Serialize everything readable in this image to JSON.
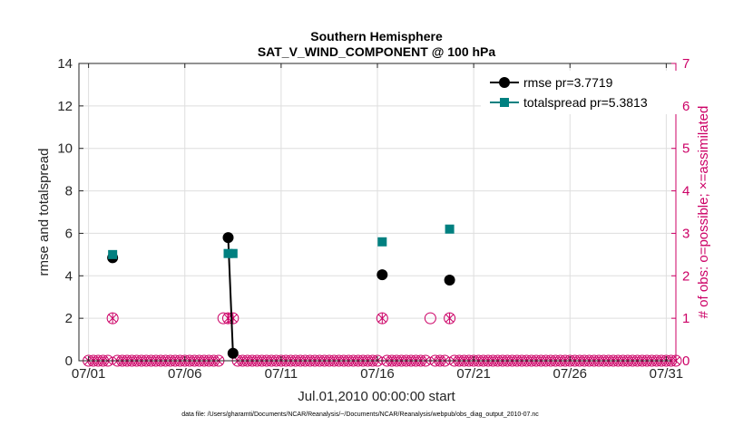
{
  "chart_data": {
    "type": "scatter",
    "title_lines": [
      "Southern Hemisphere",
      "SAT_V_WIND_COMPONENT @ 100 hPa"
    ],
    "xlabel": "Jul.01,2010 00:00:00 start",
    "ylabel_left": "rmse and totalspread",
    "ylabel_right": "# of obs: o=possible; ×=assimilated",
    "footnote": "data file: /Users/gharamti/Documents/NCAR/Reanalysis/~/Documents/NCAR/Reanalysis/webpub/obs_diag_output_2010-07.nc",
    "xlim": [
      0.5,
      31.5
    ],
    "ylim_left": [
      0,
      14
    ],
    "ylim_right": [
      0,
      7
    ],
    "x_ticks": [
      1,
      6,
      11,
      16,
      21,
      26,
      31
    ],
    "x_tick_labels": [
      "07/01",
      "07/06",
      "07/11",
      "07/16",
      "07/21",
      "07/26",
      "07/31"
    ],
    "y_ticks_left": [
      "0",
      "2",
      "4",
      "6",
      "8",
      "10",
      "12",
      "14"
    ],
    "y_ticks_right": [
      "0",
      "1",
      "2",
      "3",
      "4",
      "5",
      "6",
      "7"
    ],
    "grid": true,
    "legend_position": "top-right",
    "series": [
      {
        "name": "rmse pr=3.7719",
        "color": "#000000",
        "marker": "circle",
        "line_segments": [
          [
            [
              8.25,
              5.8
            ],
            [
              8.5,
              0.35
            ]
          ]
        ],
        "points": [
          [
            2.25,
            4.85
          ],
          [
            8.25,
            5.8
          ],
          [
            8.5,
            0.35
          ],
          [
            16.25,
            4.05
          ],
          [
            19.75,
            3.8
          ]
        ]
      },
      {
        "name": "totalspread pr=5.3813",
        "color": "#008080",
        "marker": "square",
        "line_segments": [
          [
            [
              8.25,
              5.05
            ],
            [
              8.5,
              5.05
            ]
          ]
        ],
        "points": [
          [
            2.25,
            5.0
          ],
          [
            8.25,
            5.05
          ],
          [
            8.5,
            5.05
          ],
          [
            16.25,
            5.6
          ],
          [
            19.75,
            6.2
          ]
        ]
      }
    ],
    "obs_count": {
      "color": "#cc0066",
      "possible": [
        [
          2.25,
          1
        ],
        [
          8.0,
          1
        ],
        [
          8.25,
          1
        ],
        [
          8.5,
          1
        ],
        [
          16.25,
          1
        ],
        [
          18.75,
          1
        ],
        [
          19.75,
          1
        ]
      ],
      "assimilated": [
        [
          2.25,
          1
        ],
        [
          8.25,
          1
        ],
        [
          8.5,
          1
        ],
        [
          16.25,
          1
        ],
        [
          19.75,
          1
        ]
      ],
      "zero_marker_step": 0.25
    }
  }
}
